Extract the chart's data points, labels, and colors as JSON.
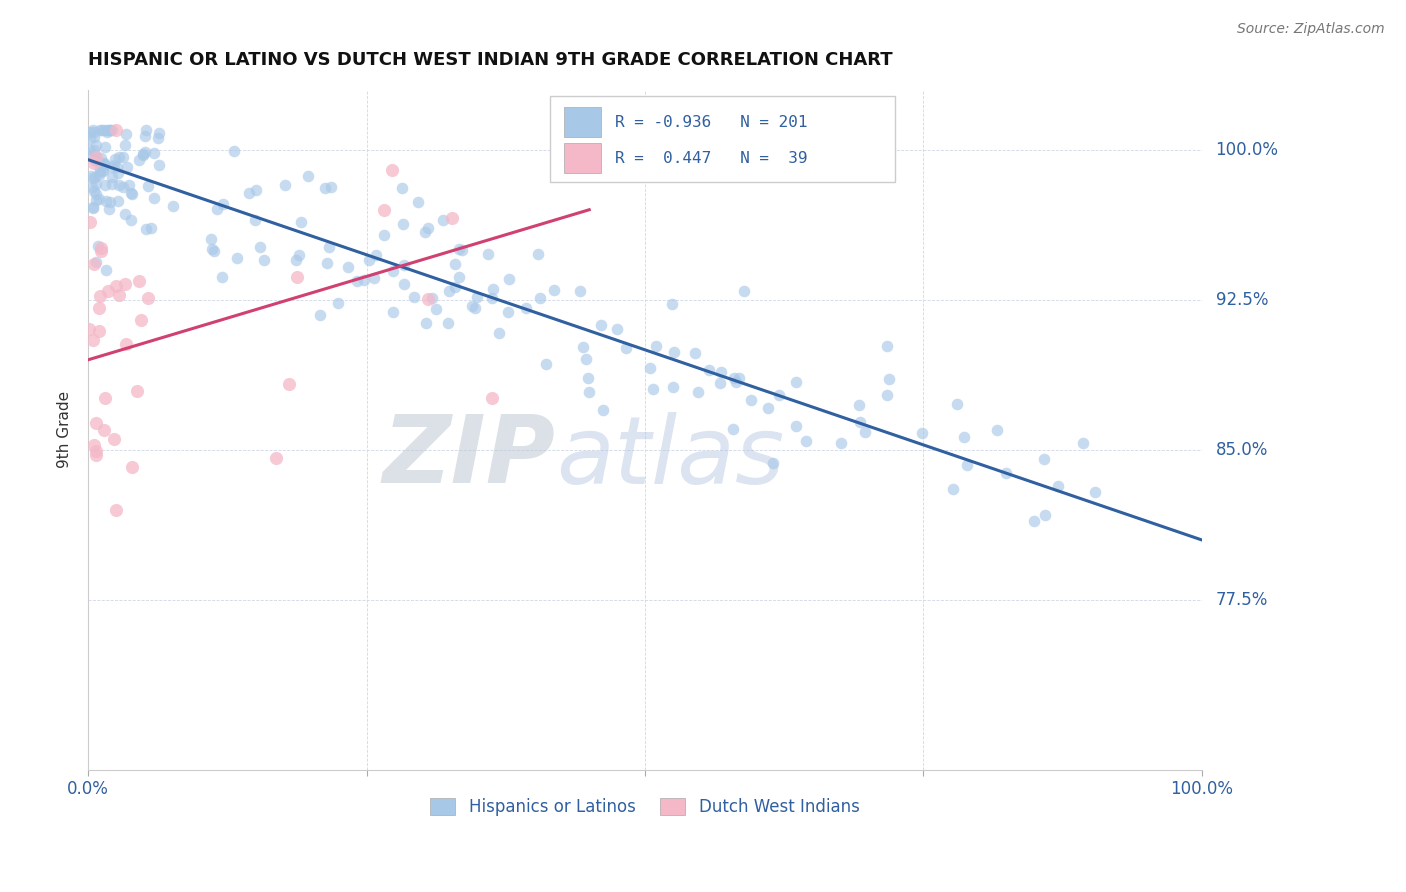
{
  "title": "HISPANIC OR LATINO VS DUTCH WEST INDIAN 9TH GRADE CORRELATION CHART",
  "source": "Source: ZipAtlas.com",
  "ylabel": "9th Grade",
  "legend_label1": "Hispanics or Latinos",
  "legend_label2": "Dutch West Indians",
  "blue_R": -0.936,
  "blue_N": 201,
  "pink_R": 0.447,
  "pink_N": 39,
  "blue_color": "#a8c8e8",
  "pink_color": "#f4b8c8",
  "blue_line_color": "#3060a0",
  "pink_line_color": "#d04070",
  "ytick_labels": [
    "100.0%",
    "92.5%",
    "85.0%",
    "77.5%"
  ],
  "ytick_values": [
    1.0,
    0.925,
    0.85,
    0.775
  ],
  "xlim": [
    0.0,
    1.0
  ],
  "ylim": [
    0.69,
    1.03
  ],
  "background_color": "#ffffff",
  "watermark_zip": "ZIP",
  "watermark_atlas": "atlas",
  "title_fontsize": 13,
  "source_fontsize": 10,
  "blue_line_start_x": 0.0,
  "blue_line_start_y": 0.995,
  "blue_line_end_x": 1.0,
  "blue_line_end_y": 0.805,
  "pink_line_start_x": 0.0,
  "pink_line_start_y": 0.895,
  "pink_line_end_x": 0.45,
  "pink_line_end_y": 0.97
}
